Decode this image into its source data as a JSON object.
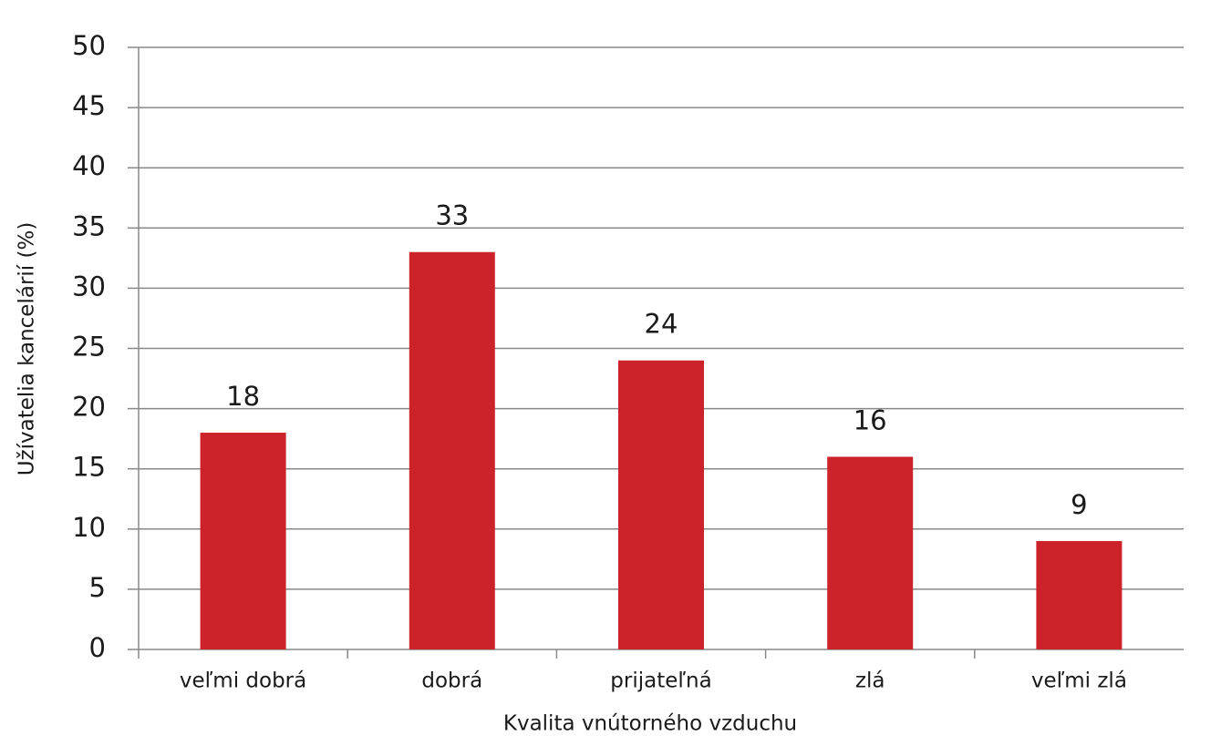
{
  "chart_data": {
    "type": "bar",
    "x_label": "Kvalita vnútorného vzduchu",
    "y_label": "Užívatelia kancelárií (%)",
    "categories": [
      "veľmi dobrá",
      "dobrá",
      "prijateľná",
      "zlá",
      "veľmi zlá"
    ],
    "values": [
      18,
      33,
      24,
      16,
      9
    ],
    "color": "#cc2229",
    "ylim": [
      0,
      50
    ],
    "yticks": [
      0,
      5,
      10,
      15,
      20,
      25,
      30,
      35,
      40,
      45,
      50
    ],
    "grid": true,
    "data_labels": true
  }
}
